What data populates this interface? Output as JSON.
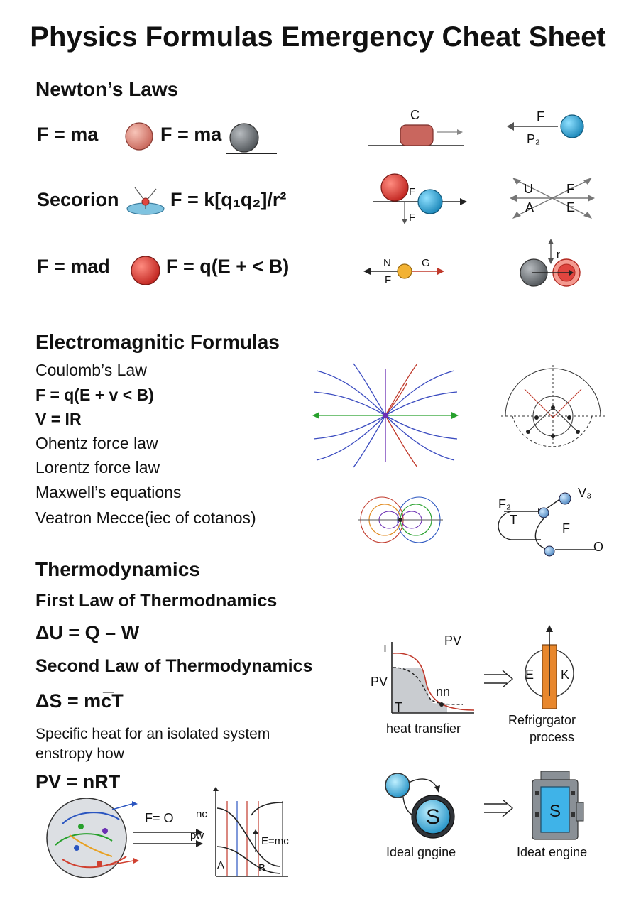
{
  "title": "Physics Formulas Emergency Cheat Sheet",
  "newton": {
    "heading": "Newton’s Laws",
    "row1": {
      "left": "F = ma",
      "right": "F = ma"
    },
    "row2": {
      "left": "Secorion",
      "right": "F = k[q₁q₂]/r²"
    },
    "row3": {
      "left": "F = mad",
      "right": "F = q(E + < B)"
    },
    "diagrams": {
      "block": {
        "top": "C"
      },
      "ball_p2": {
        "force": "F",
        "momentum": "P₂"
      },
      "two_balls": {
        "force_a": "F",
        "force_b": "F"
      },
      "cross": {
        "ul": "U",
        "ur": "F",
        "ll": "A",
        "lr": "E"
      },
      "bead": {
        "n": "N",
        "g": "G",
        "f": "F"
      },
      "pair": {
        "r": "r"
      }
    }
  },
  "em": {
    "heading": "Electromagnitic Formulas",
    "lines": [
      "Coulomb’s Law",
      "F = q(E + v < B)",
      "V = IR",
      "Ohentz force law",
      "Lorentz force law",
      "Maxwell’s equations",
      "Veatron Mecce(iec of cotanos)"
    ],
    "circuit": {
      "f2": "F₂",
      "v3": "V₃",
      "t": "T",
      "f": "F",
      "o": "O"
    }
  },
  "thermo": {
    "heading": "Thermodynamics",
    "first_law": "First Law of Thermodnamics",
    "eq1": "ΔU = Q – W",
    "second_law": "Second Law of Thermodynamics",
    "eq2": "ΔS = mc̅T",
    "desc1": "Specific  heat for an isolated system",
    "desc2": "enstropy how",
    "eq3": "PV = nRT",
    "gas": {
      "f0": "F= O"
    },
    "graph": {
      "nc": "nc",
      "pw": "pw",
      "emc": "E=mc",
      "a": "A",
      "b": "B"
    },
    "pv_graph": {
      "pv_top": "PV",
      "pv_left": "PV",
      "nn": "nn",
      "t": "T",
      "caption": "heat transfier"
    },
    "fridge": {
      "e": "E",
      "k": "K",
      "caption1": "Refrigrgator",
      "caption2": "process"
    },
    "engine1": {
      "caption": "Ideal gngine"
    },
    "engine2": {
      "caption": "Ideat engine"
    }
  },
  "colors": {
    "red_ball": "#e0453f",
    "blue_ball": "#2fa3d6",
    "orange_bar": "#e8872c"
  }
}
